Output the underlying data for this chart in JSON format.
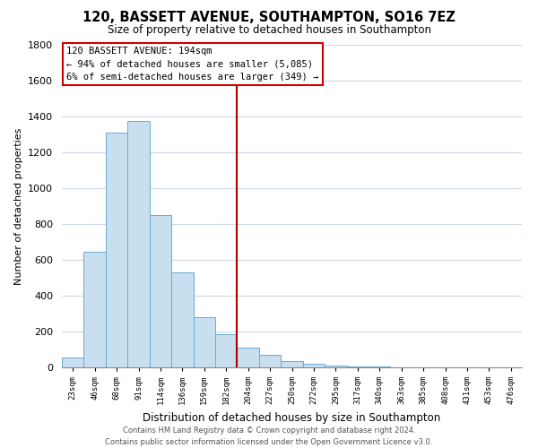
{
  "title": "120, BASSETT AVENUE, SOUTHAMPTON, SO16 7EZ",
  "subtitle": "Size of property relative to detached houses in Southampton",
  "xlabel": "Distribution of detached houses by size in Southampton",
  "ylabel": "Number of detached properties",
  "bin_labels": [
    "23sqm",
    "46sqm",
    "68sqm",
    "91sqm",
    "114sqm",
    "136sqm",
    "159sqm",
    "182sqm",
    "204sqm",
    "227sqm",
    "250sqm",
    "272sqm",
    "295sqm",
    "317sqm",
    "340sqm",
    "363sqm",
    "385sqm",
    "408sqm",
    "431sqm",
    "453sqm",
    "476sqm"
  ],
  "bar_heights": [
    55,
    645,
    1310,
    1375,
    850,
    530,
    278,
    185,
    108,
    68,
    35,
    22,
    10,
    5,
    3,
    2,
    1,
    1,
    0,
    0,
    0
  ],
  "bar_color": "#c8dff0",
  "bar_edge_color": "#6aaad4",
  "vline_color": "#aa0000",
  "ylim": [
    0,
    1800
  ],
  "yticks": [
    0,
    200,
    400,
    600,
    800,
    1000,
    1200,
    1400,
    1600,
    1800
  ],
  "annotation_title": "120 BASSETT AVENUE: 194sqm",
  "annotation_line1": "← 94% of detached houses are smaller (5,085)",
  "annotation_line2": "6% of semi-detached houses are larger (349) →",
  "annotation_box_color": "#ffffff",
  "annotation_box_edge": "#cc0000",
  "footer_line1": "Contains HM Land Registry data © Crown copyright and database right 2024.",
  "footer_line2": "Contains public sector information licensed under the Open Government Licence v3.0.",
  "background_color": "#ffffff",
  "grid_color": "#d0d8e8"
}
